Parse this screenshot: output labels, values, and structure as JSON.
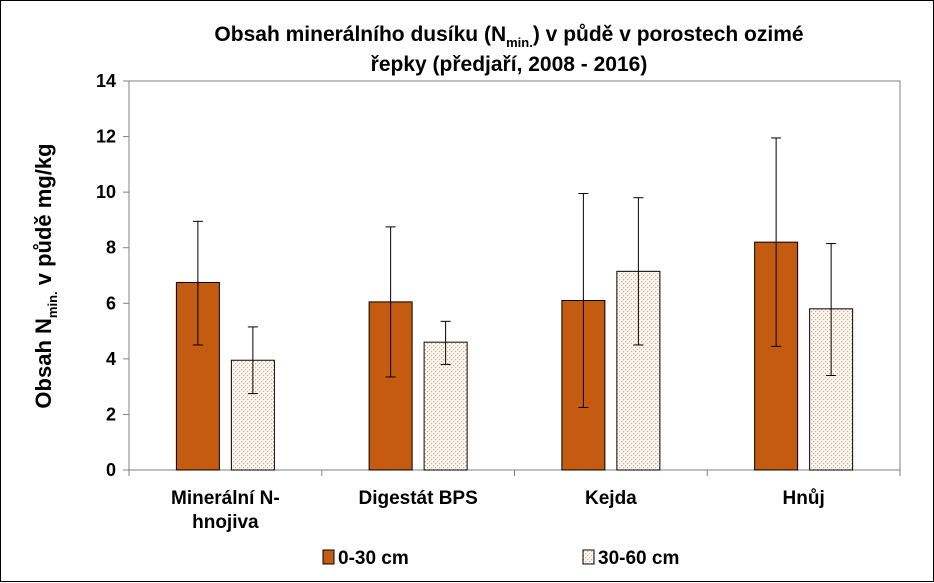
{
  "chart_data": {
    "type": "bar",
    "title_line1_part1": "Obsah minerálního dusíku (N",
    "title_line1_sub": "min.",
    "title_line1_part2": ") v půdě v porostech ozimé",
    "title_line2": "řepky (předjaří, 2008 - 2016)",
    "ylabel_part1": "Obsah N",
    "ylabel_sub": "min.",
    "ylabel_part2": " v půdě mg/kg",
    "ylim": [
      0,
      14
    ],
    "yticks": [
      0,
      2,
      4,
      6,
      8,
      10,
      12,
      14
    ],
    "grid": false,
    "legend_position": "bottom",
    "categories": [
      [
        "Minerální N-",
        "hnojiva"
      ],
      [
        "Digestát BPS"
      ],
      [
        "Kejda"
      ],
      [
        "Hnůj"
      ]
    ],
    "series": [
      {
        "name": "0-30 cm",
        "color": "#C55A11",
        "pattern": "solid",
        "values": [
          6.75,
          6.05,
          6.1,
          8.2
        ],
        "error_low": [
          4.5,
          3.35,
          2.25,
          4.45
        ],
        "error_high": [
          8.95,
          8.75,
          9.95,
          11.95
        ]
      },
      {
        "name": "30-60 cm",
        "color": "#F4B183",
        "pattern": "dotted",
        "values": [
          3.95,
          4.6,
          7.15,
          5.8
        ],
        "error_low": [
          2.75,
          3.8,
          4.5,
          3.4
        ],
        "error_high": [
          5.15,
          5.35,
          9.8,
          8.15
        ]
      }
    ]
  }
}
